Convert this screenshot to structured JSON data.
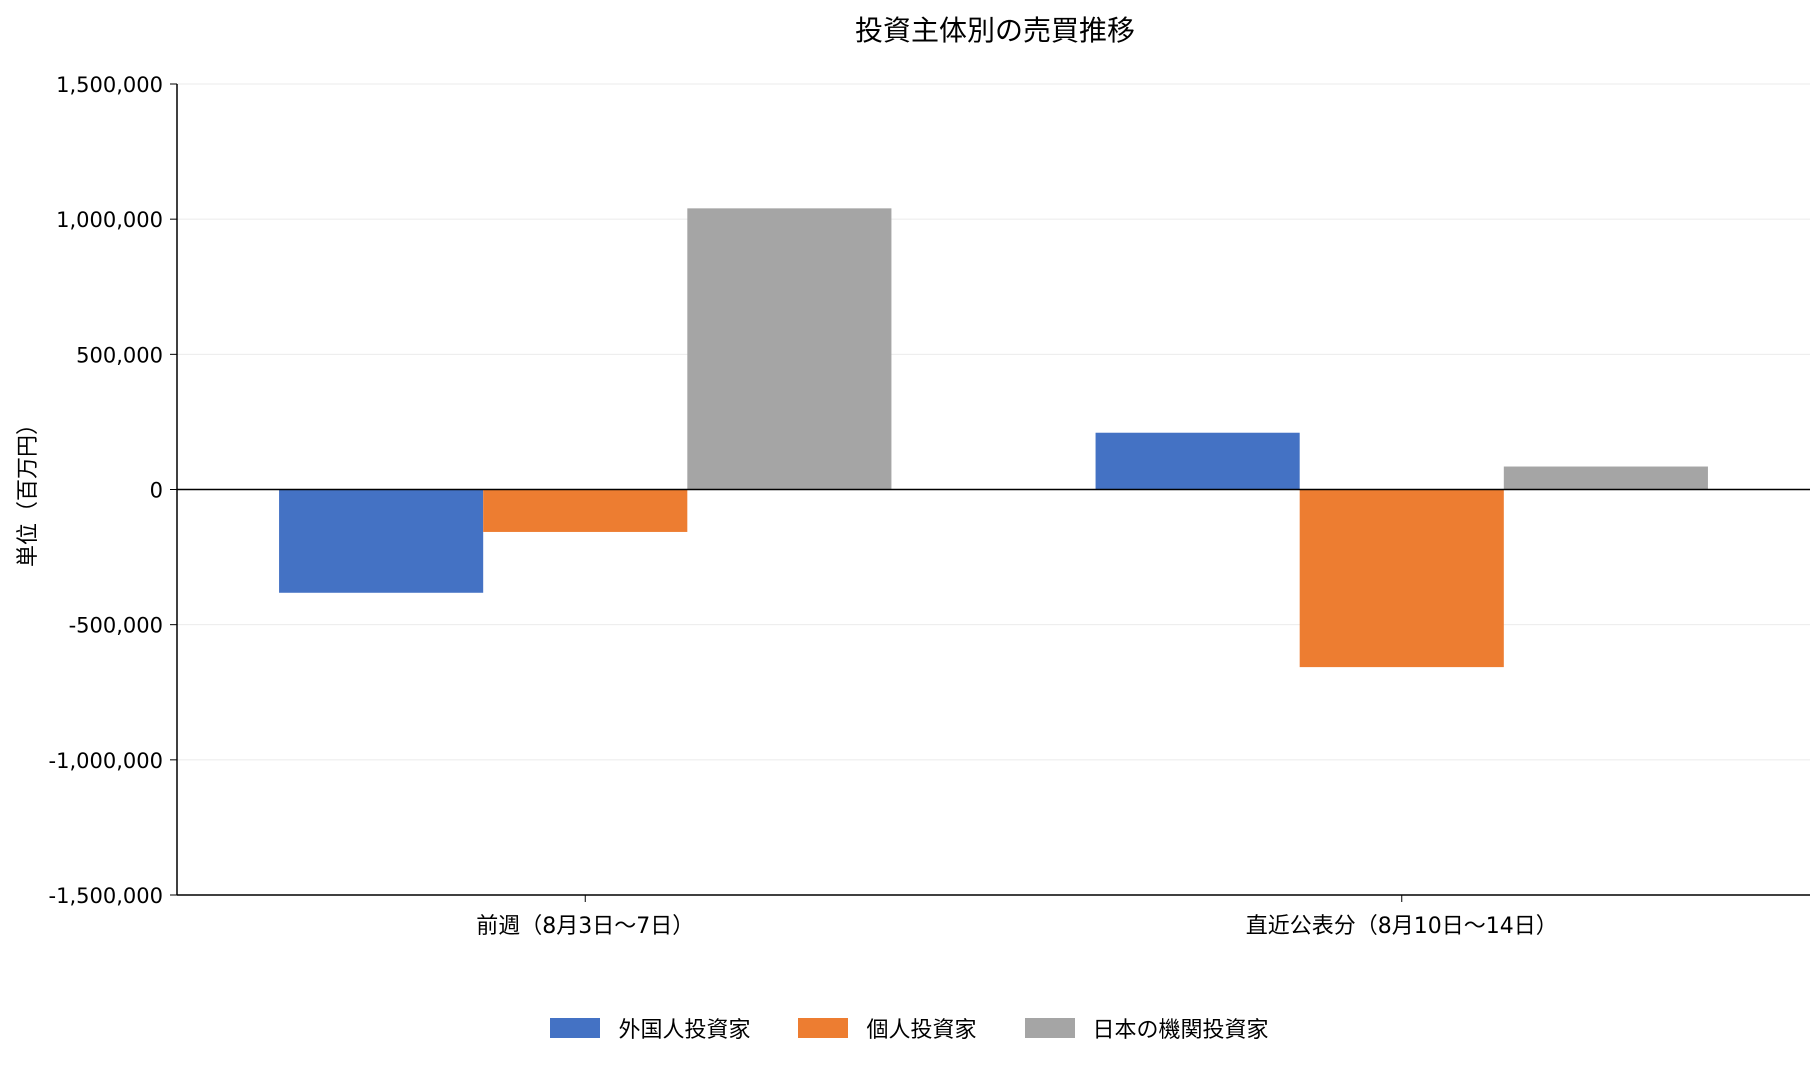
{
  "chart_data": {
    "type": "bar",
    "title": "投資主体別の売買推移",
    "ylabel": "単位（百万円）",
    "xlabel": "",
    "categories": [
      "前週（8月3日〜7日）",
      "直近公表分（8月10日〜14日）"
    ],
    "series": [
      {
        "name": "外国人投資家",
        "color": "#4472C4",
        "values": [
          -382000,
          210000
        ]
      },
      {
        "name": "個人投資家",
        "color": "#ED7D31",
        "values": [
          -157000,
          -657000
        ]
      },
      {
        "name": "日本の機関投資家",
        "color": "#A5A5A5",
        "values": [
          1040000,
          85000
        ]
      }
    ],
    "ylim": [
      -1500000,
      1500000
    ],
    "yticks": [
      1500000,
      1000000,
      500000,
      0,
      -500000,
      -1000000,
      -1500000
    ],
    "ytick_labels": [
      "1,500,000",
      "1,000,000",
      "500,000",
      "0",
      "-500,000",
      "-1,000,000",
      "-1,500,000"
    ],
    "grid": true,
    "legend_position": "bottom"
  }
}
